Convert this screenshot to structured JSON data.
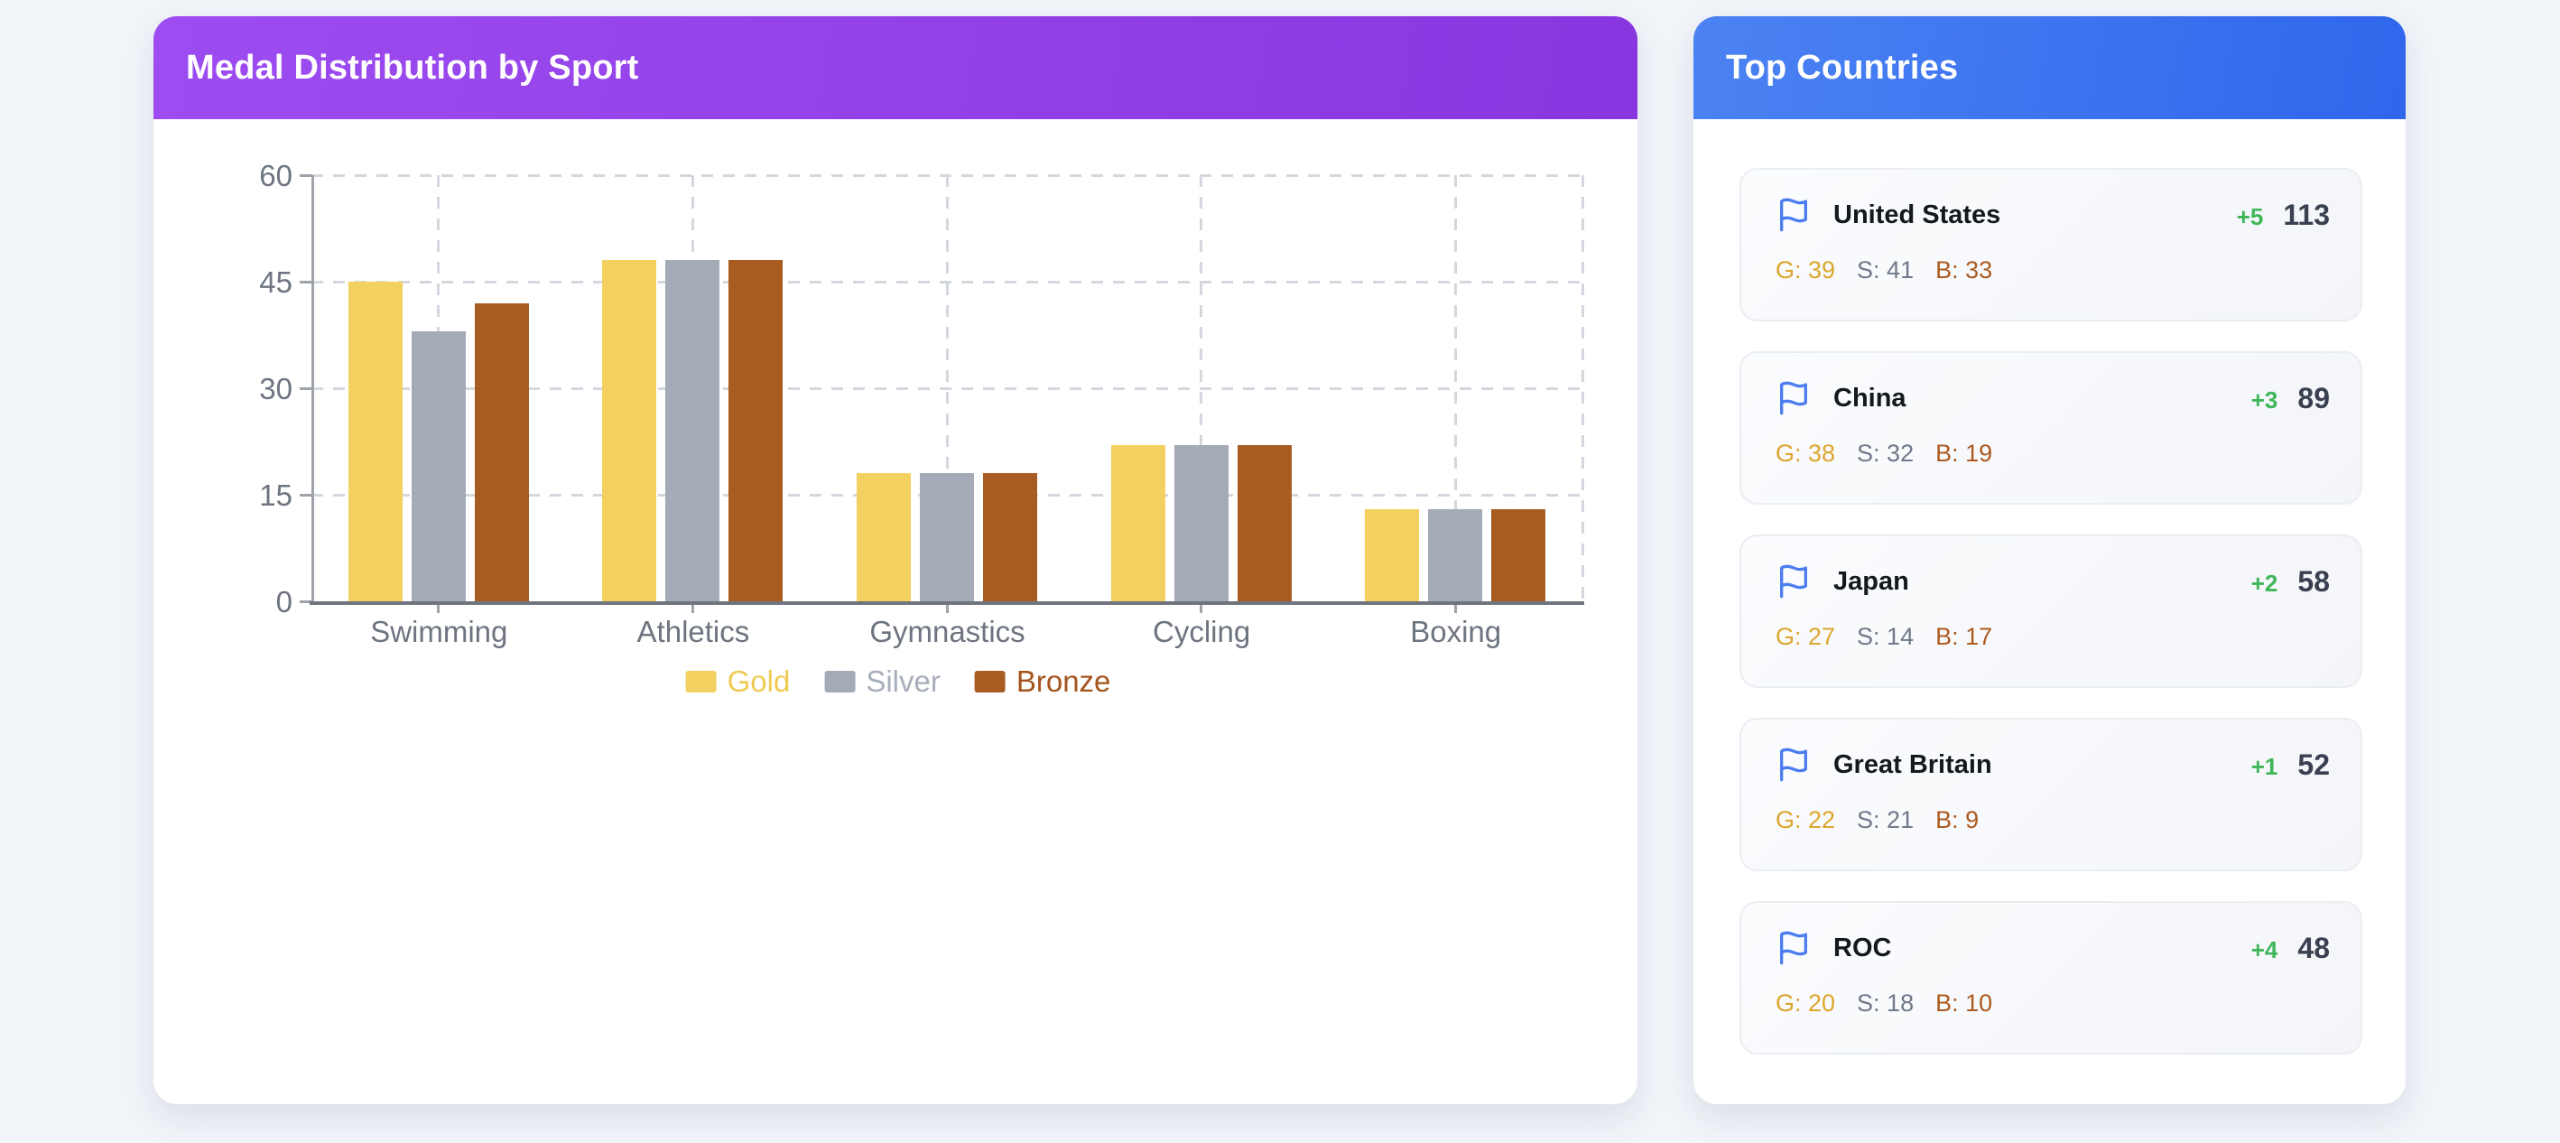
{
  "chart_card": {
    "title": "Medal Distribution by Sport"
  },
  "chart_data": {
    "type": "bar",
    "title": "Medal Distribution by Sport",
    "categories": [
      "Swimming",
      "Athletics",
      "Gymnastics",
      "Cycling",
      "Boxing"
    ],
    "series": [
      {
        "name": "Gold",
        "color": "#F2D160",
        "label_color": "#EFCB54",
        "values": [
          45,
          48,
          18,
          22,
          13
        ]
      },
      {
        "name": "Silver",
        "color": "#A4ABB6",
        "label_color": "#A7AEBB",
        "values": [
          38,
          48,
          18,
          22,
          13
        ]
      },
      {
        "name": "Bronze",
        "color": "#A85C22",
        "label_color": "#A4541C",
        "values": [
          42,
          48,
          18,
          22,
          13
        ]
      }
    ],
    "ylim": [
      0,
      60
    ],
    "yticks": [
      0,
      15,
      30,
      45,
      60
    ],
    "grid": true,
    "legend_position": "bottom"
  },
  "countries_panel": {
    "title": "Top Countries",
    "medal_labels": {
      "gold": "G:",
      "silver": "S:",
      "bronze": "B:"
    },
    "list": [
      {
        "name": "United States",
        "delta": "+5",
        "total": "113",
        "gold": 39,
        "silver": 41,
        "bronze": 33
      },
      {
        "name": "China",
        "delta": "+3",
        "total": "89",
        "gold": 38,
        "silver": 32,
        "bronze": 19
      },
      {
        "name": "Japan",
        "delta": "+2",
        "total": "58",
        "gold": 27,
        "silver": 14,
        "bronze": 17
      },
      {
        "name": "Great Britain",
        "delta": "+1",
        "total": "52",
        "gold": 22,
        "silver": 21,
        "bronze": 9
      },
      {
        "name": "ROC",
        "delta": "+4",
        "total": "48",
        "gold": 20,
        "silver": 18,
        "bronze": 10
      }
    ]
  },
  "colors": {
    "page_bg": "#F1F4F9",
    "chart_header_gradient": [
      "#9D4CF1",
      "#8836DF"
    ],
    "panel_header_gradient": [
      "#4B83F3",
      "#2F66EC"
    ],
    "delta_green": "#3FB65A",
    "gold_text": "#DCA62E",
    "silver_text": "#6F7989",
    "bronze_text": "#AC5A20",
    "flag_blue": "#4C7DF0",
    "axis_line": "#9EA3AA",
    "grid_line": "#D4D8DE",
    "tick_label": "#6E7480"
  }
}
